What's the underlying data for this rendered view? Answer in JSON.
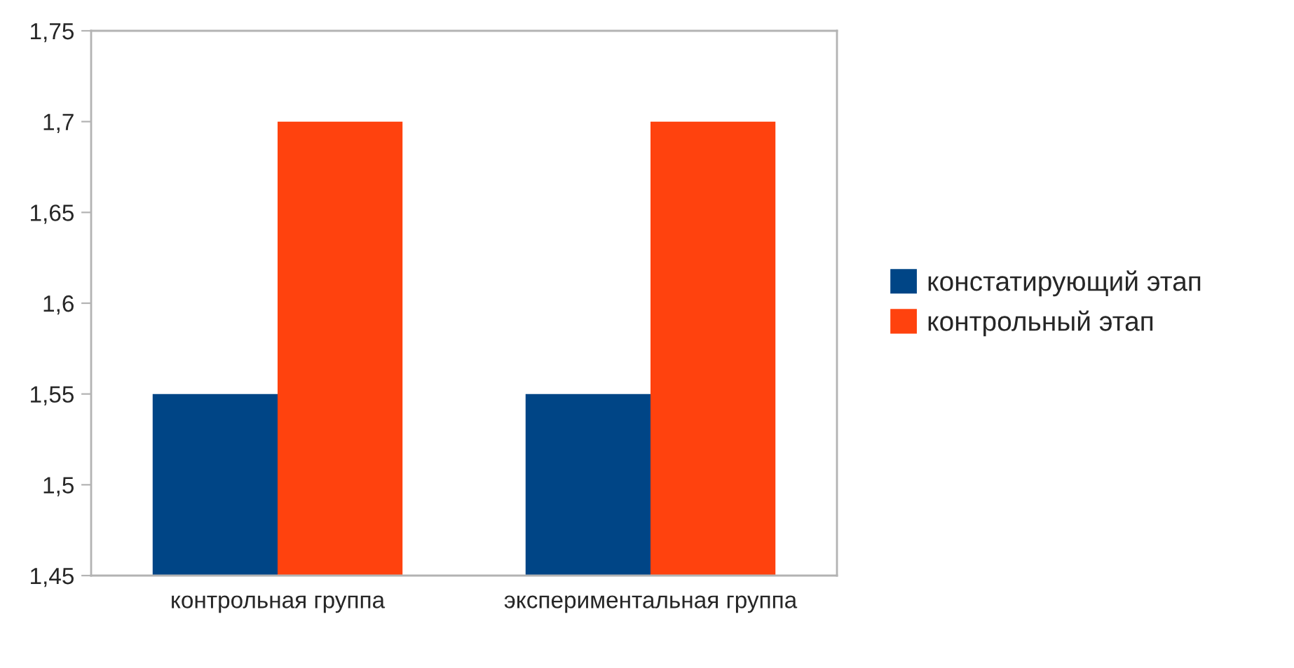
{
  "chart_data": {
    "type": "bar",
    "categories": [
      "контрольная группа",
      "экспериментальная группа"
    ],
    "series": [
      {
        "name": "констатирующий этап",
        "color": "#004586",
        "values": [
          1.55,
          1.55
        ]
      },
      {
        "name": "контрольный этап",
        "color": "#ff420e",
        "values": [
          1.7,
          1.7
        ]
      }
    ],
    "ylim": [
      1.45,
      1.75
    ],
    "yticks": [
      {
        "value": 1.45,
        "label": "1,45"
      },
      {
        "value": 1.5,
        "label": "1,5"
      },
      {
        "value": 1.55,
        "label": "1,55"
      },
      {
        "value": 1.6,
        "label": "1,6"
      },
      {
        "value": 1.65,
        "label": "1,65"
      },
      {
        "value": 1.7,
        "label": "1,7"
      },
      {
        "value": 1.75,
        "label": "1,75"
      }
    ],
    "grid": false,
    "legend": "right"
  }
}
